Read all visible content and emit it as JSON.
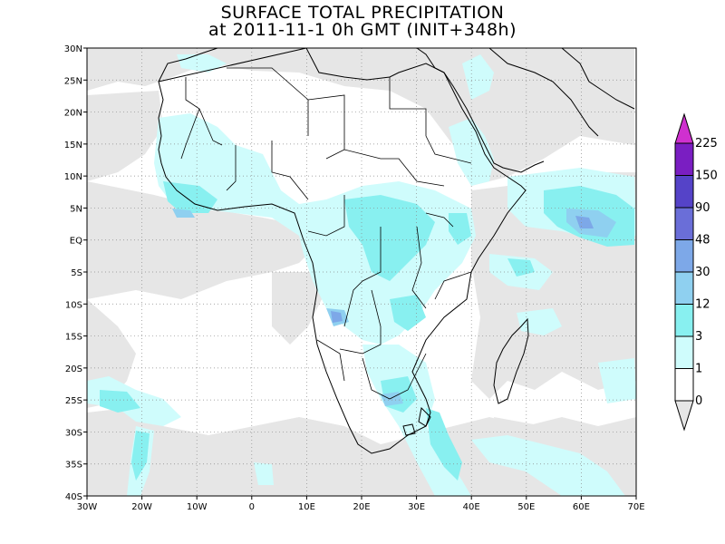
{
  "title_line1": "SURFACE TOTAL PRECIPITATION",
  "title_line2": "at 2011-11-1 0h GMT (INIT+348h)",
  "lat_labels": [
    "30N",
    "25N",
    "20N",
    "15N",
    "10N",
    "5N",
    "EQ",
    "5S",
    "10S",
    "15S",
    "20S",
    "25S",
    "30S",
    "35S",
    "40S"
  ],
  "lon_labels": [
    "30W",
    "20W",
    "10W",
    "0",
    "10E",
    "20E",
    "30E",
    "40E",
    "50E",
    "60E",
    "70E"
  ],
  "colorbar": {
    "labels": [
      "0",
      "1",
      "3",
      "12",
      "30",
      "48",
      "90",
      "150",
      "225"
    ],
    "colors": [
      "#e6e6e6",
      "#ffffff",
      "#cffcfc",
      "#88f0f0",
      "#8fd0f0",
      "#7da8e8",
      "#6a6ed8",
      "#5543c8",
      "#7a1ec2",
      "#cf30cf"
    ]
  },
  "colors": {
    "land_line": "#000000",
    "frame": "#000000",
    "grid": "#8a8a8a"
  }
}
